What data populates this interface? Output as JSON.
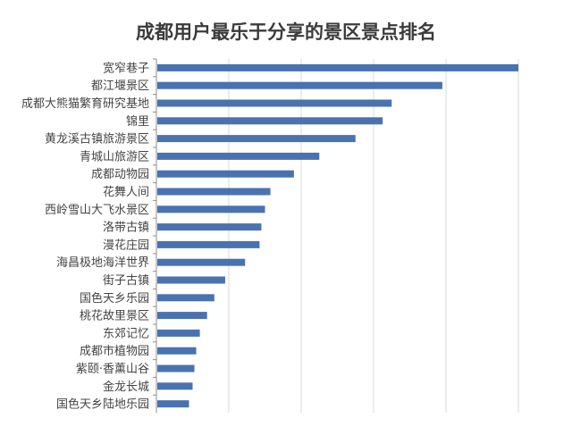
{
  "chart_data": {
    "type": "bar",
    "orientation": "horizontal",
    "title": "成都用户最乐于分享的景区景点排名",
    "categories": [
      "宽窄巷子",
      "都江堰景区",
      "成都大熊猫繁育研究基地",
      "锦里",
      "黄龙溪古镇旅游景区",
      "青城山旅游区",
      "成都动物园",
      "花舞人间",
      "西岭雪山大飞水景区",
      "洛带古镇",
      "漫花庄园",
      "海昌极地海洋世界",
      "街子古镇",
      "国色天乡乐园",
      "桃花故里景区",
      "东郊记忆",
      "成都市植物园",
      "紫颐·香薰山谷",
      "金龙长城",
      "国色天乡陆地乐园"
    ],
    "values": [
      100,
      79,
      65,
      62.5,
      55,
      45,
      38,
      31.5,
      30,
      29,
      28.5,
      24.5,
      19,
      16,
      14,
      12,
      11,
      10.5,
      10,
      9
    ],
    "xlim": [
      0,
      100
    ],
    "grid": true,
    "colors": {
      "bar": "#4a72b0",
      "grid": "#d9d9d9",
      "axis": "#8c8c8c"
    }
  }
}
